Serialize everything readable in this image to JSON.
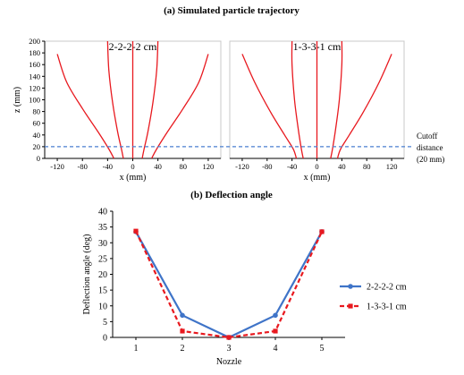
{
  "section_a_title": "(a) Simulated particle trajectory",
  "section_b_title": "(b) Deflection angle",
  "colors": {
    "trajectory": "#e8191f",
    "cutoff": "#4a7fd0",
    "series_blue": "#3f74c8",
    "series_red": "#e8191f",
    "axis": "#000000"
  },
  "chart_data": [
    {
      "type": "line",
      "title": "2-2-2-2 cm",
      "xlabel": "x (mm)",
      "ylabel": "z (mm)",
      "xlim": [
        -140,
        140
      ],
      "ylim": [
        0,
        200
      ],
      "xticks": [
        -120,
        -80,
        -40,
        0,
        40,
        80,
        120
      ],
      "yticks": [
        0,
        20,
        40,
        60,
        80,
        100,
        120,
        140,
        160,
        180,
        200
      ],
      "grid": false,
      "reference_line": {
        "z": 20,
        "style": "dashed"
      },
      "series": [
        {
          "points": [
            [
              -120,
              178
            ],
            [
              -105,
              130
            ],
            [
              -80,
              85
            ],
            [
              -55,
              45
            ],
            [
              -38,
              16
            ],
            [
              -30,
              0
            ]
          ]
        },
        {
          "points": [
            [
              -40,
              200
            ],
            [
              -38,
              150
            ],
            [
              -32,
              95
            ],
            [
              -24,
              45
            ],
            [
              -18,
              16
            ],
            [
              -15,
              0
            ]
          ]
        },
        {
          "points": [
            [
              0,
              200
            ],
            [
              0,
              0
            ]
          ]
        },
        {
          "points": [
            [
              40,
              200
            ],
            [
              38,
              150
            ],
            [
              32,
              95
            ],
            [
              24,
              45
            ],
            [
              18,
              16
            ],
            [
              15,
              0
            ]
          ]
        },
        {
          "points": [
            [
              120,
              178
            ],
            [
              105,
              130
            ],
            [
              80,
              85
            ],
            [
              55,
              45
            ],
            [
              38,
              16
            ],
            [
              30,
              0
            ]
          ]
        }
      ]
    },
    {
      "type": "line",
      "title": "1-3-3-1 cm",
      "xlabel": "x (mm)",
      "ylabel": "",
      "xlim": [
        -140,
        140
      ],
      "ylim": [
        0,
        200
      ],
      "xticks": [
        -120,
        -80,
        -40,
        0,
        40,
        80,
        120
      ],
      "grid": false,
      "reference_line": {
        "z": 20,
        "style": "dashed",
        "label": [
          "Cutoff",
          "distance",
          "(20 mm)"
        ]
      },
      "series": [
        {
          "points": [
            [
              -120,
              178
            ],
            [
              -100,
              130
            ],
            [
              -75,
              80
            ],
            [
              -52,
              40
            ],
            [
              -38,
              16
            ],
            [
              -33,
              0
            ]
          ]
        },
        {
          "points": [
            [
              -40,
              200
            ],
            [
              -40,
              160
            ],
            [
              -36,
              100
            ],
            [
              -30,
              50
            ],
            [
              -25,
              16
            ],
            [
              -22,
              0
            ]
          ]
        },
        {
          "points": [
            [
              0,
              200
            ],
            [
              0,
              0
            ]
          ]
        },
        {
          "points": [
            [
              40,
              200
            ],
            [
              40,
              160
            ],
            [
              36,
              100
            ],
            [
              30,
              50
            ],
            [
              25,
              16
            ],
            [
              22,
              0
            ]
          ]
        },
        {
          "points": [
            [
              120,
              178
            ],
            [
              100,
              130
            ],
            [
              75,
              80
            ],
            [
              52,
              40
            ],
            [
              38,
              16
            ],
            [
              33,
              0
            ]
          ]
        }
      ]
    },
    {
      "type": "line",
      "title": "",
      "xlabel": "Nozzle",
      "ylabel": "Deflection angle (deg)",
      "categories": [
        1,
        2,
        3,
        4,
        5
      ],
      "xlim": [
        0.5,
        5.5
      ],
      "ylim": [
        0,
        40
      ],
      "yticks": [
        0,
        5,
        10,
        15,
        20,
        25,
        30,
        35,
        40
      ],
      "grid": false,
      "legend_position": "right",
      "series": [
        {
          "name": "2-2-2-2 cm",
          "values": [
            33.5,
            7,
            0,
            7,
            33.5
          ],
          "style": "solid",
          "marker": "circle"
        },
        {
          "name": "1-3-3-1 cm",
          "values": [
            33.7,
            2,
            0,
            2,
            33.5
          ],
          "style": "dashed",
          "marker": "square"
        }
      ]
    }
  ]
}
